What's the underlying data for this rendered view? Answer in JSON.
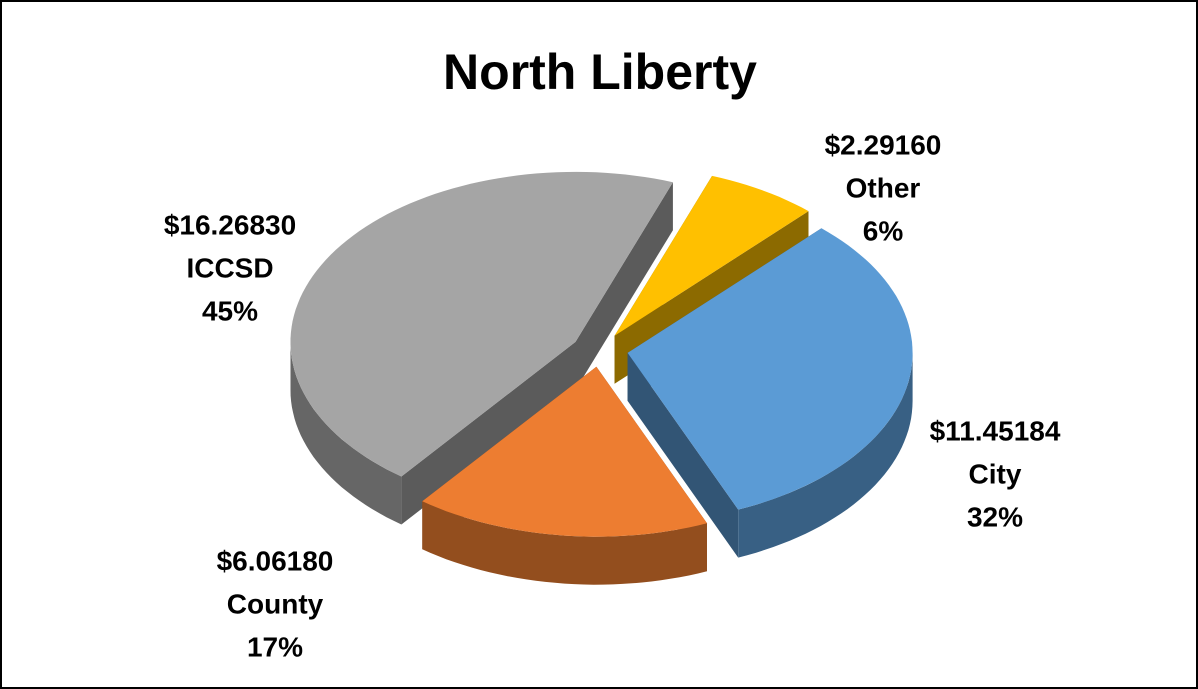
{
  "chart_data": {
    "type": "pie",
    "title": "North Liberty",
    "categories": [
      "Other",
      "City",
      "County",
      "ICCSD"
    ],
    "values": [
      2.2916,
      11.45184,
      6.0618,
      16.2683
    ],
    "value_labels": [
      "$2.29160",
      "$11.45184",
      "$6.06180",
      "$16.26830"
    ],
    "percentages": [
      6,
      32,
      17,
      45
    ],
    "percent_labels": [
      "6%",
      "32%",
      "17%",
      "45%"
    ],
    "colors": [
      "#ffc000",
      "#5b9bd5",
      "#ed7d31",
      "#a5a5a5"
    ]
  }
}
